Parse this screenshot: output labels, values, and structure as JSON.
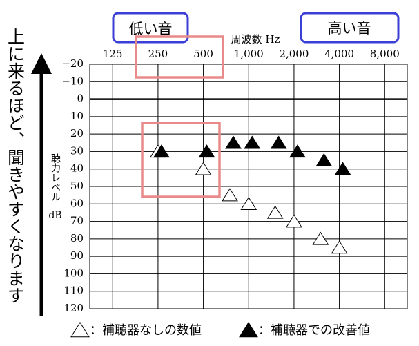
{
  "chart_data": {
    "type": "scatter",
    "x_label": "周波数 Hz",
    "y_label": "聴力レベル",
    "y_unit": "dB",
    "side_note": "上に来るほど、聞きやすくなります",
    "annotations": [
      "低い音",
      "高い音"
    ],
    "xscale": "log",
    "xlim": [
      88,
      11300
    ],
    "xticks": [
      125,
      250,
      500,
      {
        "value": 1000,
        "label": "1,000"
      },
      {
        "value": 2000,
        "label": "2,000"
      },
      {
        "value": 4000,
        "label": "4,000"
      },
      {
        "value": 8000,
        "label": "8,000"
      }
    ],
    "ylim": [
      -20,
      120
    ],
    "yinverted": true,
    "yticks": [
      {
        "value": -20,
        "label": "−20"
      },
      {
        "value": -10,
        "label": "−10"
      },
      0,
      10,
      20,
      30,
      40,
      50,
      60,
      70,
      80,
      90,
      100,
      110,
      120
    ],
    "grid": true,
    "series": [
      {
        "name": "：補聴器なしの数値",
        "color": "#ffffff",
        "x": [
          250,
          500,
          750,
          1000,
          1500,
          2000,
          3000,
          4000
        ],
        "values": [
          30,
          40,
          55,
          60,
          65,
          70,
          80,
          85
        ]
      },
      {
        "name": "：補聴器での改善値",
        "color": "#000000",
        "x": [
          250,
          500,
          750,
          1000,
          1500,
          2000,
          3000,
          4000
        ],
        "values": [
          30,
          30,
          25,
          25,
          25,
          30,
          35,
          40
        ]
      }
    ]
  }
}
